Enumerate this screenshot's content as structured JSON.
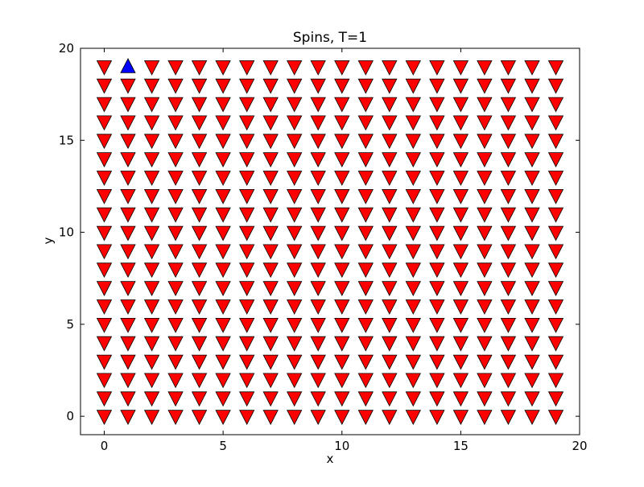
{
  "chart_data": {
    "type": "scatter",
    "title": "Spins, T=1",
    "xlabel": "x",
    "ylabel": "y",
    "xlim": [
      -1,
      20
    ],
    "ylim": [
      -1,
      20
    ],
    "xticks": [
      0,
      5,
      10,
      15,
      20
    ],
    "yticks": [
      0,
      5,
      10,
      15,
      20
    ],
    "grid": false,
    "lattice": {
      "x": [
        0,
        19
      ],
      "y": [
        0,
        19
      ],
      "step": 1
    },
    "default_spin": "down",
    "up_spins": [
      {
        "x": 1,
        "y": 19
      }
    ],
    "series": [
      {
        "name": "",
        "marker": "triangle-down",
        "color": "#ff0000",
        "spin": "down"
      },
      {
        "name": "",
        "marker": "triangle-up",
        "color": "#0000ff",
        "spin": "up"
      }
    ]
  }
}
